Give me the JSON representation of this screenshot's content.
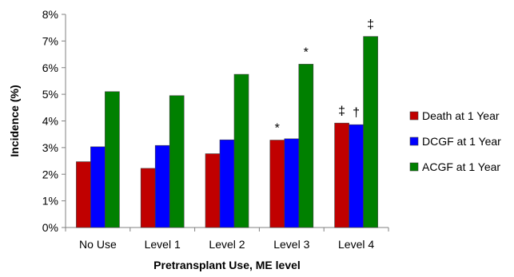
{
  "chart_data": {
    "type": "bar",
    "title": "",
    "xlabel": "Pretransplant Use, ME level",
    "ylabel": "Incidence (%)",
    "ylim": [
      0,
      8
    ],
    "yticks": [
      "0%",
      "1%",
      "2%",
      "3%",
      "4%",
      "5%",
      "6%",
      "7%",
      "8%"
    ],
    "categories": [
      "No Use",
      "Level 1",
      "Level 2",
      "Level 3",
      "Level 4"
    ],
    "series": [
      {
        "name": "Death at 1 Year",
        "color": "#c00000",
        "values": [
          2.47,
          2.22,
          2.77,
          3.28,
          3.92
        ]
      },
      {
        "name": "DCGF at 1 Year",
        "color": "#0000ff",
        "values": [
          3.03,
          3.08,
          3.29,
          3.33,
          3.86
        ]
      },
      {
        "name": "ACGF at 1 Year",
        "color": "#008000",
        "values": [
          5.1,
          4.95,
          5.75,
          6.13,
          7.17
        ]
      }
    ],
    "annotations": [
      {
        "category": "Level 3",
        "series": 0,
        "text": "*"
      },
      {
        "category": "Level 3",
        "series": 2,
        "text": "*"
      },
      {
        "category": "Level 4",
        "series": 0,
        "text": "‡"
      },
      {
        "category": "Level 4",
        "series": 1,
        "text": "†"
      },
      {
        "category": "Level 4",
        "series": 2,
        "text": "‡"
      }
    ],
    "grid": false,
    "legend_position": "right"
  }
}
